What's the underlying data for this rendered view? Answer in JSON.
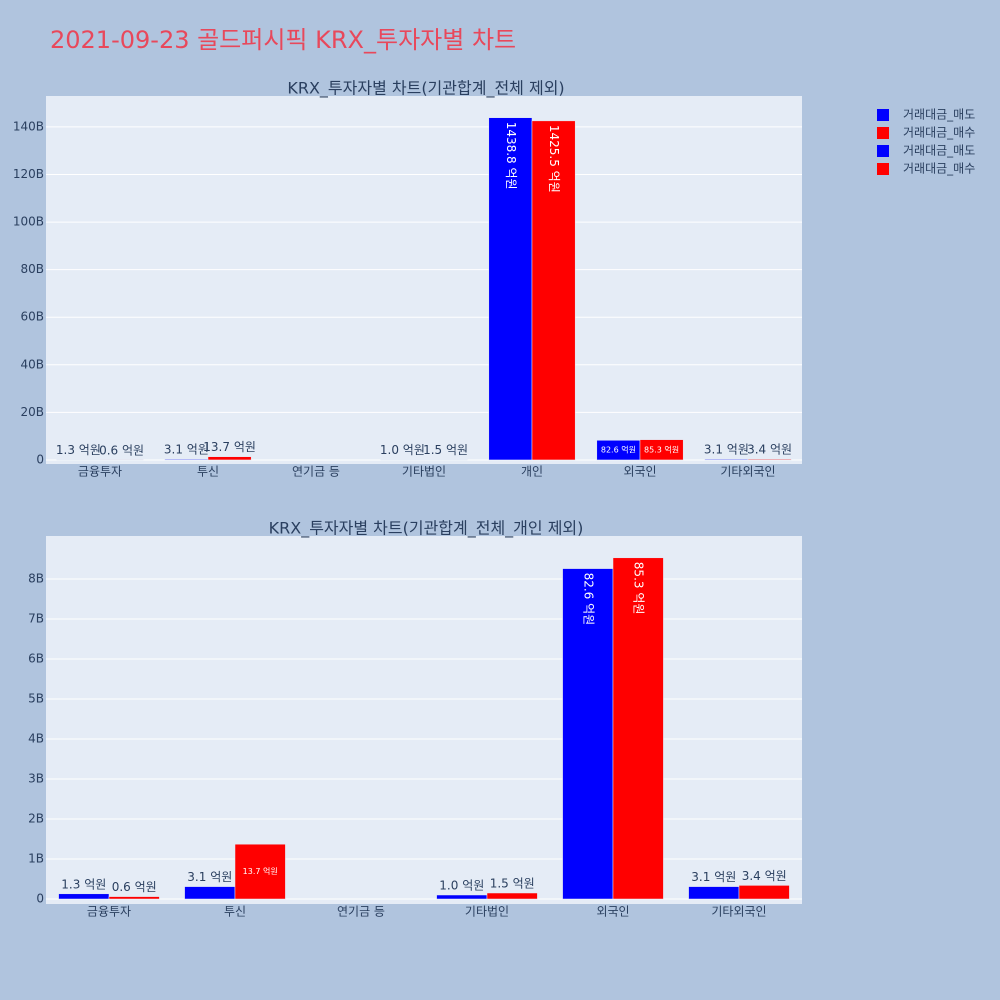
{
  "title": "2021-09-23 골드퍼시픽 KRX_투자자별 차트",
  "chart_data": [
    {
      "type": "bar",
      "title": "KRX_투자자별 차트(기관합계_전체 제외)",
      "categories": [
        "금융투자",
        "투신",
        "연기금 등",
        "기타법인",
        "개인",
        "외국인",
        "기타외국인"
      ],
      "series": [
        {
          "name": "거래대금_매도",
          "color": "#0000ff",
          "values": [
            0.13,
            0.31,
            0,
            0.1,
            143.88,
            8.26,
            0.31
          ],
          "value_labels": [
            "1.3 억원",
            "3.1 억원",
            null,
            "1.0 억원",
            "1438.8 억원",
            "82.6 억원",
            "3.1 억원"
          ]
        },
        {
          "name": "거래대금_매수",
          "color": "#ff0000",
          "values": [
            0.06,
            1.37,
            0,
            0.15,
            142.55,
            8.53,
            0.34
          ],
          "value_labels": [
            "0.6 억원",
            "13.7 억원",
            null,
            "1.5 억원",
            "1425.5 억원",
            "85.3 억원",
            "3.4 억원"
          ]
        }
      ],
      "ylim": [
        -1.7,
        153
      ],
      "yticks": [
        0,
        {
          "value": 20,
          "label": "20B"
        },
        {
          "value": 40,
          "label": "40B"
        },
        {
          "value": 60,
          "label": "60B"
        },
        {
          "value": 80,
          "label": "80B"
        },
        {
          "value": 100,
          "label": "100B"
        },
        {
          "value": 120,
          "label": "120B"
        },
        {
          "value": 140,
          "label": "140B"
        }
      ],
      "grid": true
    },
    {
      "type": "bar",
      "title": "KRX_투자자별 차트(기관합계_전체_개인 제외)",
      "categories": [
        "금융투자",
        "투신",
        "연기금 등",
        "기타법인",
        "외국인",
        "기타외국인"
      ],
      "series": [
        {
          "name": "거래대금_매도",
          "color": "#0000ff",
          "values": [
            0.13,
            0.31,
            0,
            0.1,
            8.26,
            0.31
          ],
          "value_labels": [
            "1.3 억원",
            "3.1 억원",
            null,
            "1.0 억원",
            "82.6 억원",
            "3.1 억원"
          ]
        },
        {
          "name": "거래대금_매수",
          "color": "#ff0000",
          "values": [
            0.06,
            1.37,
            0,
            0.15,
            8.53,
            0.34
          ],
          "value_labels": [
            "0.6 억원",
            "13.7 억원",
            null,
            "1.5 억원",
            "85.3 억원",
            "3.4 억원"
          ]
        }
      ],
      "ylim": [
        -0.125,
        9.075
      ],
      "yticks": [
        0,
        {
          "value": 1,
          "label": "1B"
        },
        {
          "value": 2,
          "label": "2B"
        },
        {
          "value": 3,
          "label": "3B"
        },
        {
          "value": 4,
          "label": "4B"
        },
        {
          "value": 5,
          "label": "5B"
        },
        {
          "value": 6,
          "label": "6B"
        },
        {
          "value": 7,
          "label": "7B"
        },
        {
          "value": 8,
          "label": "8B"
        }
      ],
      "grid": true
    }
  ]
}
